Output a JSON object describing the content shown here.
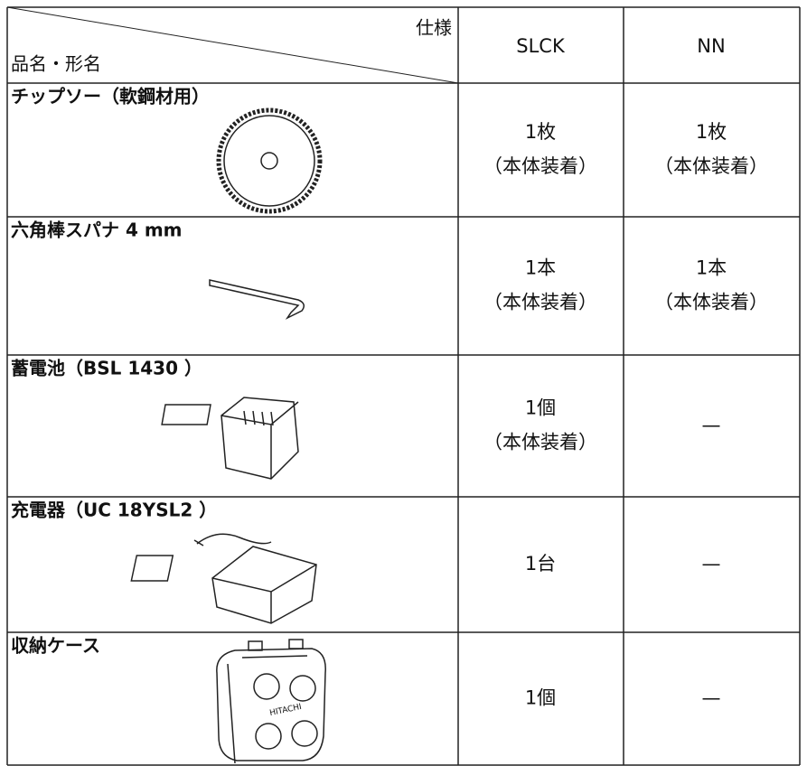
{
  "table": {
    "header": {
      "spec": "仕様",
      "item": "品名・形名",
      "columns": [
        "SLCK",
        "NN"
      ]
    },
    "rows": [
      {
        "name": "チップソー（軟鋼材用）",
        "cells": [
          [
            "1枚",
            "（本体装着）"
          ],
          [
            "1枚",
            "（本体装着）"
          ]
        ]
      },
      {
        "name": "六角棒スパナ 4 mm",
        "cells": [
          [
            "1本",
            "（本体装着）"
          ],
          [
            "1本",
            "（本体装着）"
          ]
        ]
      },
      {
        "name": "蓄電池（BSL 1430 ）",
        "cells": [
          [
            "1個",
            "（本体装着）"
          ],
          [
            "—"
          ]
        ]
      },
      {
        "name": "充電器（UC 18YSL2 ）",
        "cells": [
          [
            "1台"
          ],
          [
            "—"
          ]
        ]
      },
      {
        "name": "収納ケース",
        "image_label": "HITACHI",
        "cells": [
          [
            "1個"
          ],
          [
            "—"
          ]
        ]
      }
    ]
  }
}
